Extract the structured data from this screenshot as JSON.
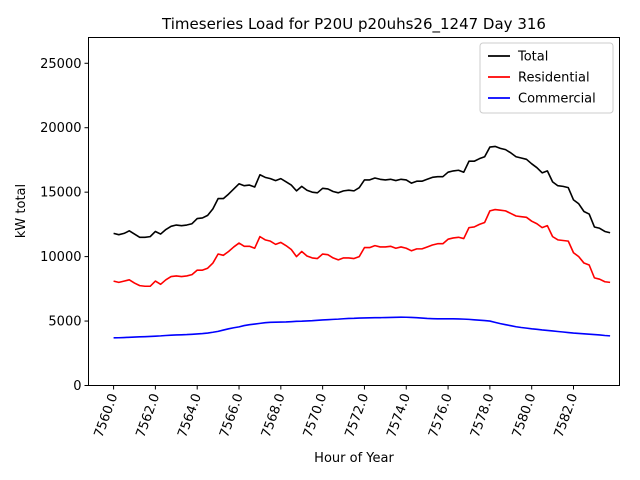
{
  "chart_data": {
    "type": "line",
    "title": "Timeseries Load for P20U p20uhs26_1247  Day 316",
    "xlabel": "Hour of Year",
    "ylabel": "kW total",
    "xlim": [
      7558.8,
      7584.2
    ],
    "ylim": [
      0,
      27000
    ],
    "xticks": [
      7560,
      7562,
      7564,
      7566,
      7568,
      7570,
      7572,
      7574,
      7576,
      7578,
      7580,
      7582
    ],
    "xtick_labels": [
      "7560.0",
      "7562.0",
      "7564.0",
      "7566.0",
      "7568.0",
      "7570.0",
      "7572.0",
      "7574.0",
      "7576.0",
      "7578.0",
      "7580.0",
      "7582.0"
    ],
    "yticks": [
      0,
      5000,
      10000,
      15000,
      20000,
      25000
    ],
    "ytick_labels": [
      "0",
      "5000",
      "10000",
      "15000",
      "20000",
      "25000"
    ],
    "legend_position": "top-right",
    "x_start": 7560,
    "x_step": 0.25,
    "series": [
      {
        "name": "Total",
        "color": "#000000",
        "values": [
          11800,
          11700,
          11800,
          12000,
          11750,
          11500,
          11500,
          11550,
          11950,
          11750,
          12100,
          12350,
          12450,
          12400,
          12450,
          12550,
          12950,
          13000,
          13200,
          13700,
          14500,
          14500,
          14850,
          15250,
          15650,
          15500,
          15550,
          15400,
          16350,
          16150,
          16050,
          15900,
          16050,
          15800,
          15550,
          15100,
          15450,
          15150,
          15000,
          14950,
          15300,
          15250,
          15050,
          14950,
          15100,
          15150,
          15100,
          15350,
          15950,
          15950,
          16100,
          16000,
          15950,
          16000,
          15900,
          16000,
          15950,
          15700,
          15850,
          15850,
          16000,
          16150,
          16200,
          16200,
          16550,
          16650,
          16700,
          16550,
          17400,
          17400,
          17600,
          17750,
          18500,
          18550,
          18400,
          18300,
          18050,
          17750,
          17650,
          17550,
          17200,
          16900,
          16500,
          16650,
          15800,
          15500,
          15450,
          15350,
          14400,
          14100,
          13500,
          13300,
          12300,
          12200,
          11950,
          11850
        ]
      },
      {
        "name": "Residential",
        "color": "#ff0000",
        "values": [
          8100,
          8000,
          8100,
          8200,
          7950,
          7750,
          7700,
          7700,
          8100,
          7850,
          8200,
          8450,
          8500,
          8450,
          8500,
          8600,
          8950,
          8950,
          9100,
          9500,
          10200,
          10100,
          10400,
          10750,
          11050,
          10800,
          10800,
          10650,
          11550,
          11300,
          11200,
          10950,
          11100,
          10850,
          10550,
          10000,
          10400,
          10050,
          9900,
          9850,
          10200,
          10150,
          9900,
          9750,
          9900,
          9900,
          9850,
          10000,
          10700,
          10700,
          10850,
          10750,
          10750,
          10800,
          10650,
          10750,
          10650,
          10450,
          10600,
          10600,
          10750,
          10900,
          11000,
          11000,
          11350,
          11450,
          11500,
          11400,
          12250,
          12300,
          12500,
          12650,
          13550,
          13650,
          13600,
          13550,
          13350,
          13150,
          13100,
          13050,
          12750,
          12550,
          12250,
          12400,
          11550,
          11300,
          11250,
          11200,
          10300,
          10000,
          9500,
          9350,
          8350,
          8250,
          8050,
          8000
        ]
      },
      {
        "name": "Commercial",
        "color": "#0000ff",
        "values": [
          3700,
          3705,
          3720,
          3740,
          3760,
          3775,
          3790,
          3810,
          3830,
          3850,
          3880,
          3905,
          3920,
          3935,
          3950,
          3975,
          4000,
          4030,
          4070,
          4130,
          4200,
          4300,
          4400,
          4480,
          4550,
          4650,
          4720,
          4770,
          4820,
          4870,
          4900,
          4910,
          4920,
          4930,
          4955,
          4980,
          4990,
          5010,
          5030,
          5060,
          5090,
          5110,
          5130,
          5150,
          5180,
          5200,
          5210,
          5230,
          5240,
          5250,
          5260,
          5265,
          5270,
          5280,
          5290,
          5300,
          5295,
          5280,
          5260,
          5230,
          5200,
          5185,
          5175,
          5170,
          5170,
          5175,
          5165,
          5150,
          5130,
          5100,
          5070,
          5040,
          5000,
          4900,
          4800,
          4720,
          4640,
          4560,
          4500,
          4450,
          4400,
          4360,
          4310,
          4270,
          4230,
          4190,
          4150,
          4110,
          4070,
          4040,
          4010,
          3980,
          3950,
          3920,
          3880,
          3850
        ]
      }
    ]
  }
}
